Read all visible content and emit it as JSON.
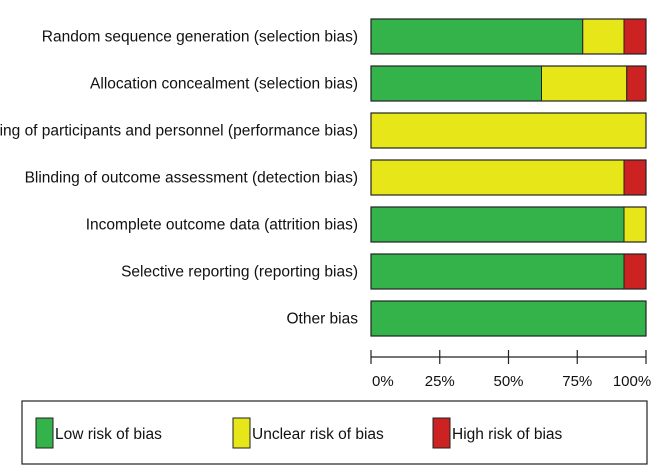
{
  "chart_data": {
    "type": "bar",
    "orientation": "horizontal",
    "stacked": true,
    "categories": [
      "Random sequence generation (selection bias)",
      "Allocation concealment (selection bias)",
      "Blinding of participants and personnel (performance bias)",
      "Blinding of outcome assessment (detection bias)",
      "Incomplete outcome data (attrition bias)",
      "Selective reporting (reporting bias)",
      "Other bias"
    ],
    "series": [
      {
        "name": "Low risk of bias",
        "color": "#33b34a",
        "values": [
          77,
          62,
          0,
          0,
          92,
          92,
          100
        ]
      },
      {
        "name": "Unclear risk of bias",
        "color": "#e6e619",
        "values": [
          15,
          31,
          100,
          92,
          8,
          0,
          0
        ]
      },
      {
        "name": "High risk of bias",
        "color": "#cc2222",
        "values": [
          8,
          7,
          0,
          8,
          0,
          8,
          0
        ]
      }
    ],
    "xlim": [
      0,
      100
    ],
    "x_ticks": [
      0,
      25,
      50,
      75,
      100
    ],
    "x_tick_labels": [
      "0%",
      "25%",
      "50%",
      "75%",
      "100%"
    ],
    "title": "",
    "xlabel": "",
    "ylabel": "",
    "grid": false,
    "legend_position": "bottom"
  }
}
